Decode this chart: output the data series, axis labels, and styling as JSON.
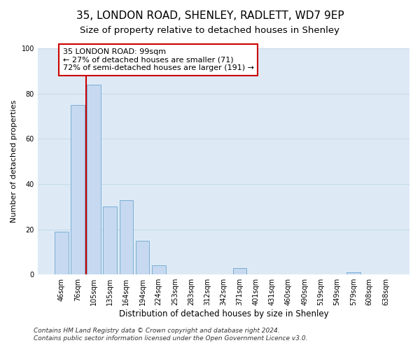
{
  "title": "35, LONDON ROAD, SHENLEY, RADLETT, WD7 9EP",
  "subtitle": "Size of property relative to detached houses in Shenley",
  "xlabel": "Distribution of detached houses by size in Shenley",
  "ylabel": "Number of detached properties",
  "bar_labels": [
    "46sqm",
    "76sqm",
    "105sqm",
    "135sqm",
    "164sqm",
    "194sqm",
    "224sqm",
    "253sqm",
    "283sqm",
    "312sqm",
    "342sqm",
    "371sqm",
    "401sqm",
    "431sqm",
    "460sqm",
    "490sqm",
    "519sqm",
    "549sqm",
    "579sqm",
    "608sqm",
    "638sqm"
  ],
  "bar_values": [
    19,
    75,
    84,
    30,
    33,
    15,
    4,
    0,
    0,
    0,
    0,
    3,
    0,
    0,
    0,
    0,
    0,
    0,
    1,
    0,
    0
  ],
  "bar_color": "#c6d9f0",
  "bar_edgecolor": "#7bafd4",
  "grid_color": "#c8daea",
  "background_color": "#ddeaf6",
  "vline_color": "#cc0000",
  "annotation_text": "35 LONDON ROAD: 99sqm\n← 27% of detached houses are smaller (71)\n72% of semi-detached houses are larger (191) →",
  "annotation_box_edgecolor": "#cc0000",
  "annotation_box_facecolor": "#ffffff",
  "ylim": [
    0,
    100
  ],
  "yticks": [
    0,
    20,
    40,
    60,
    80,
    100
  ],
  "footer_line1": "Contains HM Land Registry data © Crown copyright and database right 2024.",
  "footer_line2": "Contains public sector information licensed under the Open Government Licence v3.0.",
  "title_fontsize": 11,
  "subtitle_fontsize": 9.5,
  "tick_fontsize": 7,
  "ylabel_fontsize": 8,
  "xlabel_fontsize": 8.5,
  "annotation_fontsize": 8,
  "footer_fontsize": 6.5
}
